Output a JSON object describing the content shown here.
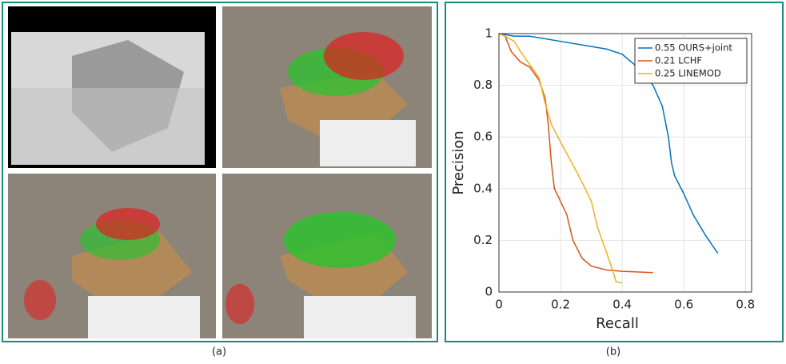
{
  "chart_data": {
    "type": "line",
    "x_label": "Recall",
    "y_label": "Precision",
    "xlim": [
      0,
      0.82
    ],
    "xticks": [
      0,
      0.2,
      0.4,
      0.6,
      0.8
    ],
    "ylim": [
      0,
      1
    ],
    "yticks": [
      0,
      0.2,
      0.4,
      0.6,
      0.8,
      1
    ],
    "grid": true,
    "legend": "upper-right",
    "series": [
      {
        "name": "0.55 OURS+joint",
        "color": "#0072bd",
        "x": [
          0,
          0.05,
          0.1,
          0.2,
          0.3,
          0.35,
          0.4,
          0.45,
          0.5,
          0.53,
          0.55,
          0.56,
          0.57,
          0.6,
          0.63,
          0.67,
          0.71
        ],
        "values": [
          1,
          0.99,
          0.99,
          0.97,
          0.95,
          0.94,
          0.92,
          0.87,
          0.8,
          0.72,
          0.6,
          0.5,
          0.45,
          0.38,
          0.3,
          0.22,
          0.15
        ]
      },
      {
        "name": "0.21 LCHF",
        "color": "#d95319",
        "x": [
          0,
          0.02,
          0.04,
          0.07,
          0.1,
          0.13,
          0.15,
          0.16,
          0.17,
          0.18,
          0.2,
          0.22,
          0.24,
          0.27,
          0.3,
          0.35,
          0.4,
          0.5
        ],
        "values": [
          1,
          0.99,
          0.93,
          0.89,
          0.87,
          0.82,
          0.75,
          0.65,
          0.5,
          0.4,
          0.35,
          0.3,
          0.2,
          0.13,
          0.1,
          0.085,
          0.08,
          0.075
        ]
      },
      {
        "name": "0.25 LINEMOD",
        "color": "#edb120",
        "x": [
          0,
          0.02,
          0.05,
          0.07,
          0.1,
          0.13,
          0.15,
          0.17,
          0.2,
          0.25,
          0.28,
          0.3,
          0.32,
          0.35,
          0.37,
          0.38,
          0.4
        ],
        "values": [
          1,
          0.99,
          0.97,
          0.93,
          0.88,
          0.83,
          0.73,
          0.65,
          0.58,
          0.47,
          0.4,
          0.35,
          0.25,
          0.15,
          0.08,
          0.04,
          0.035
        ]
      }
    ]
  },
  "captions": [
    "(a)",
    "(b)"
  ]
}
